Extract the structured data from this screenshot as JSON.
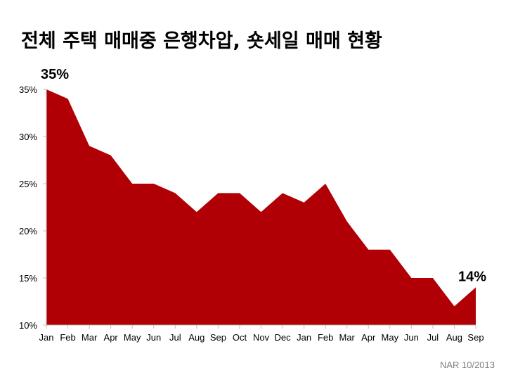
{
  "title": "전체 주택 매매중 은행차압, 숏세일 매매 현황",
  "source": "NAR 10/2013",
  "colors": {
    "area_fill": "#b00005",
    "axis": "#bfbfbf"
  },
  "chart_data": {
    "type": "area",
    "title": "전체 주택 매매중 은행차압, 숏세일 매매 현황",
    "xlabel": "",
    "ylabel": "",
    "categories": [
      "Jan",
      "Feb",
      "Mar",
      "Apr",
      "May",
      "Jun",
      "Jul",
      "Aug",
      "Sep",
      "Oct",
      "Nov",
      "Dec",
      "Jan",
      "Feb",
      "Mar",
      "Apr",
      "May",
      "Jun",
      "Jul",
      "Aug",
      "Sep"
    ],
    "values": [
      35,
      34,
      29,
      28,
      25,
      25,
      24,
      22,
      24,
      24,
      22,
      24,
      23,
      25,
      21,
      18,
      18,
      15,
      15,
      12,
      14
    ],
    "ylim": [
      10,
      35
    ],
    "yticks": [
      "10%",
      "15%",
      "20%",
      "25%",
      "30%",
      "35%"
    ],
    "ytick_values": [
      10,
      15,
      20,
      25,
      30,
      35
    ],
    "grid": false,
    "legend": "none",
    "annotations": [
      {
        "text": "35%",
        "index": 0
      },
      {
        "text": "14%",
        "index": 20
      }
    ]
  }
}
